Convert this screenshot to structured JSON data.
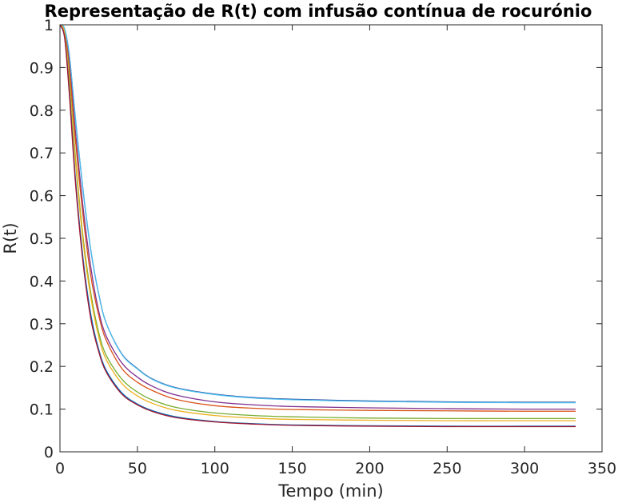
{
  "chart_data": {
    "type": "line",
    "title": "Representação de R(t) com infusão contínua de rocurónio",
    "xlabel": "Tempo (min)",
    "ylabel": "R(t)",
    "xlim": [
      0,
      350
    ],
    "ylim": [
      0,
      1
    ],
    "xticks": [
      0,
      50,
      100,
      150,
      200,
      250,
      300,
      350
    ],
    "yticks": [
      0,
      0.1,
      0.2,
      0.3,
      0.4,
      0.5,
      0.6,
      0.7,
      0.8,
      0.9,
      1
    ],
    "grid": false,
    "legend": "none",
    "x": [
      0,
      3,
      6,
      10,
      15,
      20,
      25,
      30,
      40,
      50,
      60,
      75,
      100,
      125,
      150,
      200,
      250,
      300,
      333
    ],
    "series": [
      {
        "color": "#1f3f99",
        "values": [
          1.0,
          0.99,
          0.93,
          0.78,
          0.61,
          0.47,
          0.37,
          0.3,
          0.229,
          0.195,
          0.17,
          0.15,
          0.135,
          0.127,
          0.123,
          0.119,
          0.117,
          0.116,
          0.116
        ]
      },
      {
        "color": "#4dbeee",
        "values": [
          1.0,
          0.99,
          0.93,
          0.78,
          0.61,
          0.47,
          0.37,
          0.3,
          0.228,
          0.194,
          0.169,
          0.149,
          0.134,
          0.126,
          0.122,
          0.118,
          0.116,
          0.115,
          0.115
        ]
      },
      {
        "color": "#7e2f8e",
        "values": [
          1.0,
          0.98,
          0.91,
          0.75,
          0.57,
          0.43,
          0.33,
          0.27,
          0.208,
          0.175,
          0.153,
          0.133,
          0.117,
          0.11,
          0.106,
          0.103,
          0.101,
          0.1,
          0.1
        ]
      },
      {
        "color": "#d95319",
        "values": [
          1.0,
          0.98,
          0.9,
          0.73,
          0.55,
          0.41,
          0.32,
          0.26,
          0.195,
          0.163,
          0.143,
          0.123,
          0.108,
          0.102,
          0.099,
          0.097,
          0.096,
          0.095,
          0.095
        ]
      },
      {
        "color": "#77ac30",
        "values": [
          1.0,
          0.98,
          0.88,
          0.69,
          0.5,
          0.37,
          0.28,
          0.225,
          0.17,
          0.14,
          0.121,
          0.104,
          0.091,
          0.085,
          0.082,
          0.079,
          0.078,
          0.078,
          0.078
        ]
      },
      {
        "color": "#edb120",
        "values": [
          1.0,
          0.98,
          0.87,
          0.68,
          0.49,
          0.36,
          0.27,
          0.215,
          0.16,
          0.131,
          0.113,
          0.097,
          0.085,
          0.079,
          0.076,
          0.074,
          0.073,
          0.073,
          0.073
        ]
      },
      {
        "color": "#0072bd",
        "values": [
          1.0,
          0.97,
          0.85,
          0.64,
          0.45,
          0.32,
          0.24,
          0.19,
          0.138,
          0.112,
          0.096,
          0.082,
          0.071,
          0.066,
          0.063,
          0.061,
          0.06,
          0.06,
          0.06
        ]
      },
      {
        "color": "#a2142f",
        "values": [
          1.0,
          0.97,
          0.84,
          0.63,
          0.44,
          0.31,
          0.235,
          0.186,
          0.135,
          0.11,
          0.094,
          0.08,
          0.07,
          0.065,
          0.062,
          0.06,
          0.059,
          0.059,
          0.059
        ]
      }
    ]
  }
}
